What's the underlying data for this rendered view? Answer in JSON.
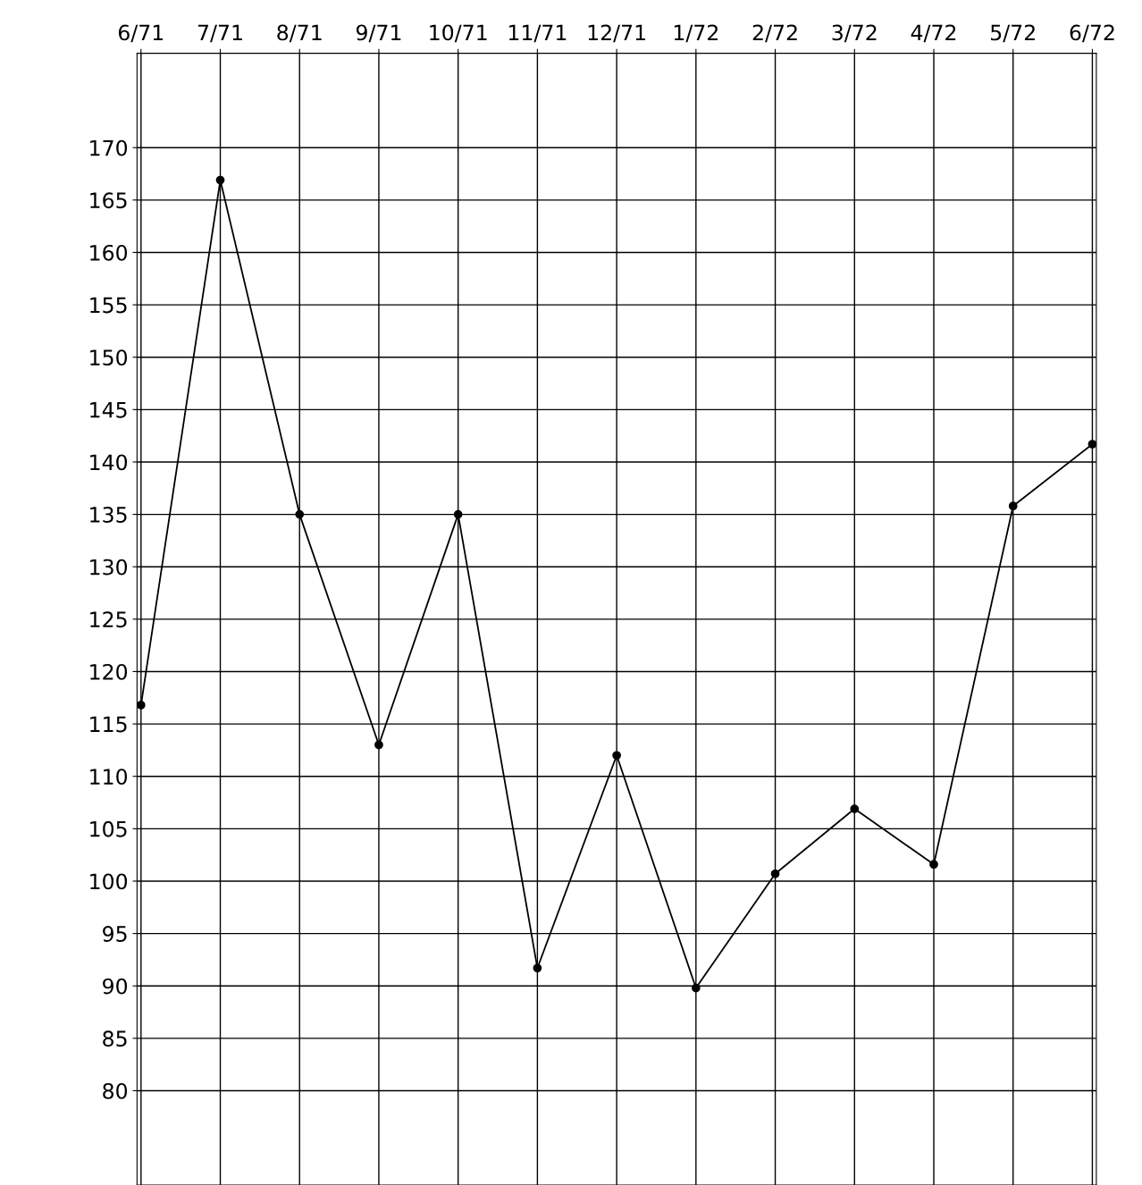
{
  "chart_data": {
    "type": "line",
    "categories": [
      "6/71",
      "7/71",
      "8/71",
      "9/71",
      "10/71",
      "11/71",
      "12/71",
      "1/72",
      "2/72",
      "3/72",
      "4/72",
      "5/72",
      "6/72"
    ],
    "series": [
      {
        "color": "#000000",
        "values": [
          116.8,
          166.9,
          135,
          113,
          135,
          91.7,
          112,
          89.8,
          100.7,
          106.9,
          101.6,
          135.8,
          141.7
        ]
      }
    ],
    "ylim": [
      71,
      179
    ],
    "yticks": [
      80,
      85,
      90,
      95,
      100,
      105,
      110,
      115,
      120,
      125,
      130,
      135,
      140,
      145,
      150,
      155,
      160,
      165,
      170
    ],
    "grid": true,
    "marker": "circle",
    "line_style": "solid",
    "legend": false
  }
}
